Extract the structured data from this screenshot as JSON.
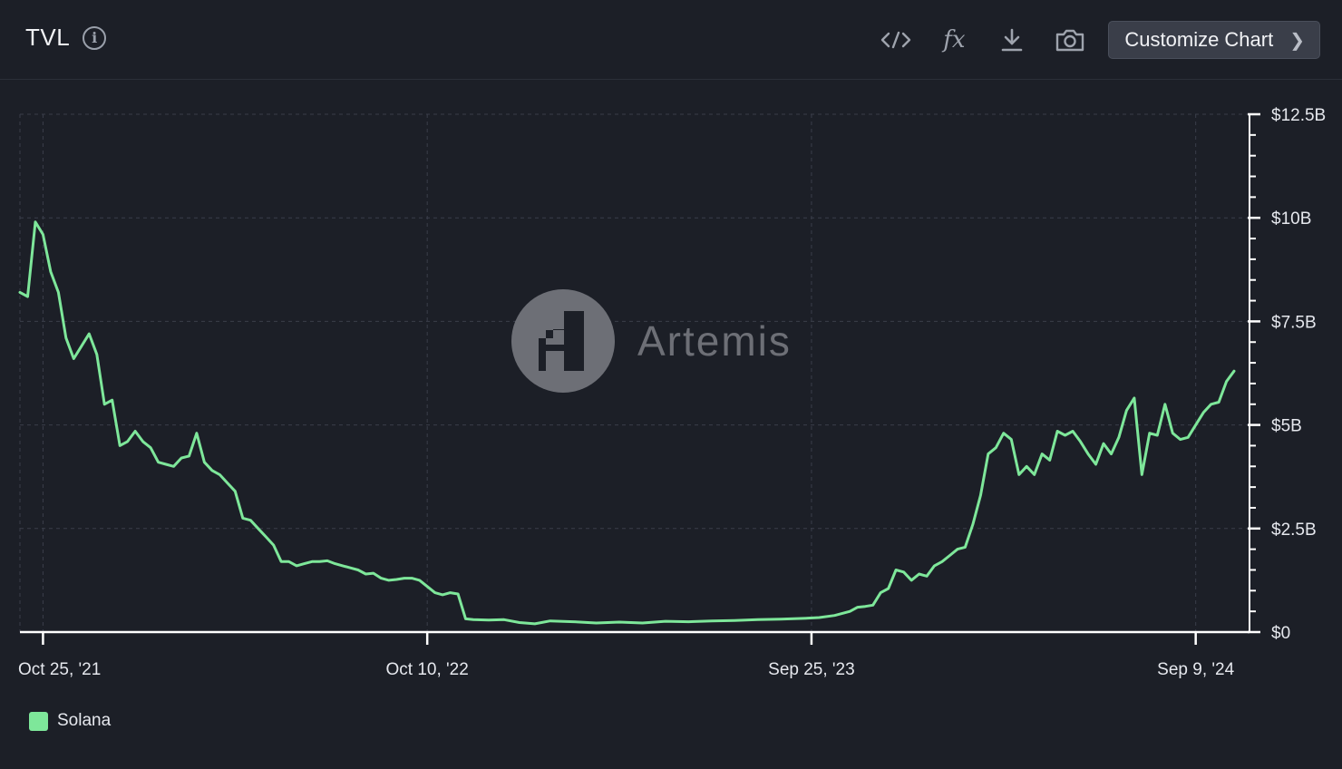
{
  "header": {
    "title": "TVL",
    "info_icon": "info-icon",
    "tools": [
      "code-icon",
      "fx-icon",
      "download-icon",
      "camera-icon"
    ],
    "fx_label": "fx",
    "customize_label": "Customize Chart",
    "customize_icon": "chevron-right-icon"
  },
  "watermark": {
    "text": "Artemis",
    "logo": "artemis-logo-icon"
  },
  "colors": {
    "background": "#1c1f27",
    "line": "#7ee79a",
    "grid": "#3a3e4a",
    "axis": "#ffffff",
    "watermark": "#6d6f76"
  },
  "legend": {
    "series_name": "Solana",
    "color": "#7ee79a"
  },
  "chart_data": {
    "type": "line",
    "title": "TVL",
    "x_axis": {
      "type": "date",
      "range": [
        "2021-10-04",
        "2024-10-28"
      ],
      "ticks": [
        {
          "date": "2021-10-25",
          "label": "Oct 25, '21"
        },
        {
          "date": "2022-10-10",
          "label": "Oct 10, '22"
        },
        {
          "date": "2023-09-25",
          "label": "Sep 25, '23"
        },
        {
          "date": "2024-09-09",
          "label": "Sep 9, '24"
        }
      ]
    },
    "y_axis": {
      "position": "right",
      "ylim": [
        0,
        12.5
      ],
      "unit": "billion USD",
      "ticks": [
        {
          "value": 0,
          "label": "$0"
        },
        {
          "value": 2.5,
          "label": "$2.5B"
        },
        {
          "value": 5,
          "label": "$5B"
        },
        {
          "value": 7.5,
          "label": "$7.5B"
        },
        {
          "value": 10,
          "label": "$10B"
        },
        {
          "value": 12.5,
          "label": "$12.5B"
        }
      ],
      "minor_step": 0.5
    },
    "grid": true,
    "legend_position": "bottom-left",
    "series": [
      {
        "name": "Solana",
        "color": "#7ee79a",
        "points": [
          [
            "2021-10-04",
            8.2
          ],
          [
            "2021-10-11",
            8.1
          ],
          [
            "2021-10-18",
            9.9
          ],
          [
            "2021-10-25",
            9.6
          ],
          [
            "2021-11-01",
            8.7
          ],
          [
            "2021-11-08",
            8.2
          ],
          [
            "2021-11-15",
            7.1
          ],
          [
            "2021-11-22",
            6.6
          ],
          [
            "2021-11-29",
            6.9
          ],
          [
            "2021-12-06",
            7.2
          ],
          [
            "2021-12-13",
            6.7
          ],
          [
            "2021-12-20",
            5.5
          ],
          [
            "2021-12-27",
            5.6
          ],
          [
            "2022-01-03",
            4.5
          ],
          [
            "2022-01-10",
            4.6
          ],
          [
            "2022-01-17",
            4.85
          ],
          [
            "2022-01-24",
            4.6
          ],
          [
            "2022-01-31",
            4.45
          ],
          [
            "2022-02-07",
            4.1
          ],
          [
            "2022-02-14",
            4.05
          ],
          [
            "2022-02-21",
            4.0
          ],
          [
            "2022-02-28",
            4.2
          ],
          [
            "2022-03-07",
            4.25
          ],
          [
            "2022-03-14",
            4.8
          ],
          [
            "2022-03-21",
            4.1
          ],
          [
            "2022-03-28",
            3.9
          ],
          [
            "2022-04-04",
            3.8
          ],
          [
            "2022-04-11",
            3.6
          ],
          [
            "2022-04-18",
            3.4
          ],
          [
            "2022-04-25",
            2.75
          ],
          [
            "2022-05-02",
            2.7
          ],
          [
            "2022-05-09",
            2.5
          ],
          [
            "2022-05-16",
            2.3
          ],
          [
            "2022-05-23",
            2.1
          ],
          [
            "2022-05-30",
            1.7
          ],
          [
            "2022-06-06",
            1.7
          ],
          [
            "2022-06-13",
            1.6
          ],
          [
            "2022-06-20",
            1.65
          ],
          [
            "2022-06-27",
            1.7
          ],
          [
            "2022-07-04",
            1.7
          ],
          [
            "2022-07-11",
            1.72
          ],
          [
            "2022-07-18",
            1.65
          ],
          [
            "2022-07-25",
            1.6
          ],
          [
            "2022-08-01",
            1.55
          ],
          [
            "2022-08-08",
            1.5
          ],
          [
            "2022-08-15",
            1.4
          ],
          [
            "2022-08-22",
            1.42
          ],
          [
            "2022-08-29",
            1.3
          ],
          [
            "2022-09-05",
            1.25
          ],
          [
            "2022-09-12",
            1.27
          ],
          [
            "2022-09-19",
            1.3
          ],
          [
            "2022-09-26",
            1.3
          ],
          [
            "2022-10-03",
            1.25
          ],
          [
            "2022-10-17",
            0.95
          ],
          [
            "2022-10-24",
            0.9
          ],
          [
            "2022-10-31",
            0.95
          ],
          [
            "2022-11-07",
            0.92
          ],
          [
            "2022-11-14",
            0.32
          ],
          [
            "2022-11-21",
            0.3
          ],
          [
            "2022-12-05",
            0.29
          ],
          [
            "2022-12-19",
            0.3
          ],
          [
            "2023-01-02",
            0.23
          ],
          [
            "2023-01-16",
            0.2
          ],
          [
            "2023-01-30",
            0.27
          ],
          [
            "2023-02-20",
            0.25
          ],
          [
            "2023-03-13",
            0.22
          ],
          [
            "2023-04-03",
            0.24
          ],
          [
            "2023-04-24",
            0.22
          ],
          [
            "2023-05-15",
            0.26
          ],
          [
            "2023-06-05",
            0.25
          ],
          [
            "2023-06-26",
            0.27
          ],
          [
            "2023-07-17",
            0.28
          ],
          [
            "2023-08-07",
            0.3
          ],
          [
            "2023-08-28",
            0.31
          ],
          [
            "2023-09-18",
            0.33
          ],
          [
            "2023-10-02",
            0.35
          ],
          [
            "2023-10-16",
            0.4
          ],
          [
            "2023-10-30",
            0.5
          ],
          [
            "2023-11-06",
            0.6
          ],
          [
            "2023-11-13",
            0.62
          ],
          [
            "2023-11-20",
            0.65
          ],
          [
            "2023-11-27",
            0.95
          ],
          [
            "2023-12-04",
            1.05
          ],
          [
            "2023-12-11",
            1.5
          ],
          [
            "2023-12-18",
            1.45
          ],
          [
            "2023-12-25",
            1.25
          ],
          [
            "2024-01-01",
            1.4
          ],
          [
            "2024-01-08",
            1.35
          ],
          [
            "2024-01-15",
            1.6
          ],
          [
            "2024-01-22",
            1.7
          ],
          [
            "2024-01-29",
            1.85
          ],
          [
            "2024-02-05",
            2.0
          ],
          [
            "2024-02-12",
            2.05
          ],
          [
            "2024-02-19",
            2.6
          ],
          [
            "2024-02-26",
            3.3
          ],
          [
            "2024-03-04",
            4.3
          ],
          [
            "2024-03-11",
            4.45
          ],
          [
            "2024-03-18",
            4.8
          ],
          [
            "2024-03-25",
            4.65
          ],
          [
            "2024-04-01",
            3.8
          ],
          [
            "2024-04-08",
            4.0
          ],
          [
            "2024-04-15",
            3.8
          ],
          [
            "2024-04-22",
            4.3
          ],
          [
            "2024-04-29",
            4.15
          ],
          [
            "2024-05-06",
            4.85
          ],
          [
            "2024-05-13",
            4.75
          ],
          [
            "2024-05-20",
            4.85
          ],
          [
            "2024-05-27",
            4.6
          ],
          [
            "2024-06-03",
            4.3
          ],
          [
            "2024-06-10",
            4.05
          ],
          [
            "2024-06-17",
            4.55
          ],
          [
            "2024-06-24",
            4.3
          ],
          [
            "2024-07-01",
            4.7
          ],
          [
            "2024-07-08",
            5.35
          ],
          [
            "2024-07-15",
            5.65
          ],
          [
            "2024-07-22",
            3.8
          ],
          [
            "2024-07-29",
            4.8
          ],
          [
            "2024-08-05",
            4.75
          ],
          [
            "2024-08-12",
            5.5
          ],
          [
            "2024-08-19",
            4.8
          ],
          [
            "2024-08-26",
            4.65
          ],
          [
            "2024-09-02",
            4.7
          ],
          [
            "2024-09-09",
            5.0
          ],
          [
            "2024-09-16",
            5.3
          ],
          [
            "2024-09-23",
            5.5
          ],
          [
            "2024-09-30",
            5.55
          ],
          [
            "2024-10-07",
            6.05
          ],
          [
            "2024-10-14",
            6.3
          ]
        ]
      }
    ]
  }
}
